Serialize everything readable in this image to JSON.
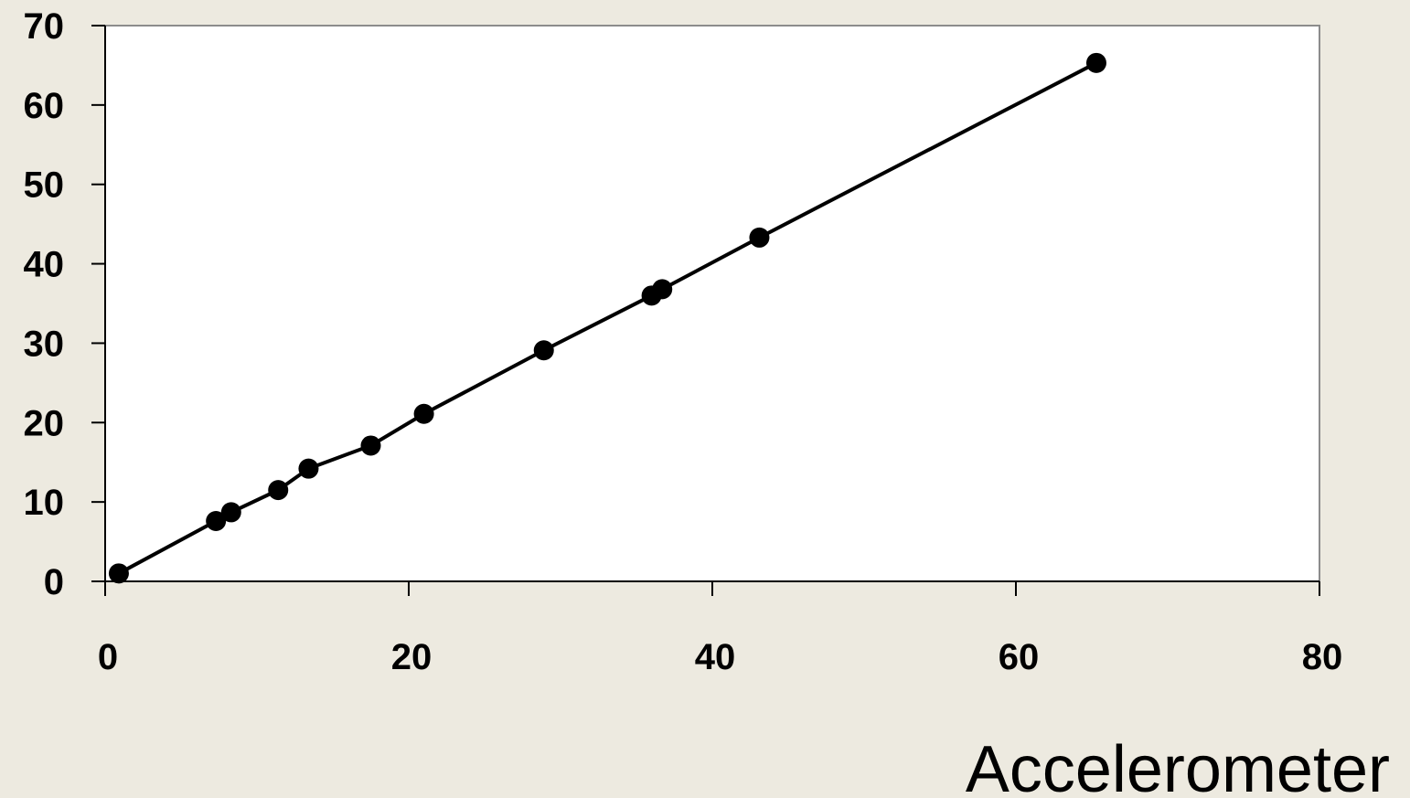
{
  "colors": {
    "background": "#edeae0",
    "plot_area": "#ffffff",
    "plot_border": "#8c8c8c",
    "axis": "#000000",
    "series": "#000000"
  },
  "chart_data": {
    "type": "scatter",
    "title": "",
    "xlabel": "Accelerometer",
    "ylabel": "",
    "xlim": [
      0,
      80
    ],
    "ylim": [
      0,
      70
    ],
    "xticks": [
      0,
      20,
      40,
      60,
      80
    ],
    "yticks": [
      0,
      10,
      20,
      30,
      40,
      50,
      60,
      70
    ],
    "xtick_labels": [
      "0",
      "20",
      "40",
      "60",
      "80"
    ],
    "ytick_labels": [
      "0",
      "10",
      "20",
      "30",
      "40",
      "50",
      "60",
      "70"
    ],
    "grid": false,
    "legend": "none",
    "series": [
      {
        "x": [
          0.9,
          7.3,
          8.3,
          11.4,
          13.4,
          17.5,
          21.0,
          28.9,
          36.0,
          36.7,
          43.1,
          65.3
        ],
        "y": [
          1.0,
          7.6,
          8.7,
          11.5,
          14.2,
          17.1,
          21.1,
          29.1,
          36.0,
          36.8,
          43.3,
          65.3
        ],
        "marker": "filled-circle",
        "line": "fit-line"
      }
    ]
  }
}
